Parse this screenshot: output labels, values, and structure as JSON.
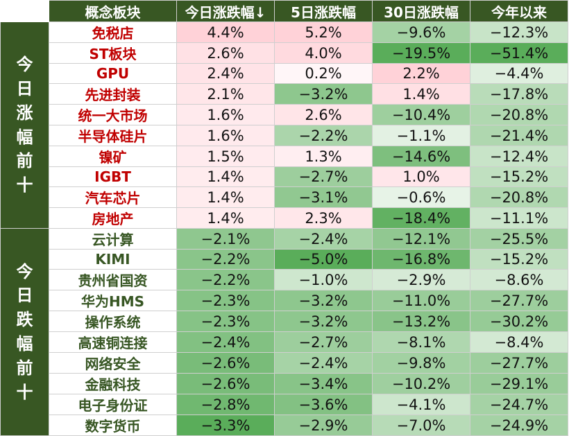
{
  "table": {
    "headers": [
      "概念板块",
      "今日涨跌幅↓",
      "5日涨跌幅",
      "30日涨跌幅",
      "今年以来"
    ],
    "groups": [
      {
        "label": "今日涨幅前十",
        "rows": [
          {
            "name": "免税店",
            "d1": "4.4%",
            "d5": "5.2%",
            "d30": "−9.6%",
            "ytd": "−12.3%"
          },
          {
            "name": "ST板块",
            "d1": "2.6%",
            "d5": "4.0%",
            "d30": "−19.5%",
            "ytd": "−51.4%"
          },
          {
            "name": "GPU",
            "d1": "2.4%",
            "d5": "0.2%",
            "d30": "2.2%",
            "ytd": "−4.4%"
          },
          {
            "name": "先进封装",
            "d1": "2.1%",
            "d5": "−3.2%",
            "d30": "1.4%",
            "ytd": "−17.8%"
          },
          {
            "name": "统一大市场",
            "d1": "1.6%",
            "d5": "2.6%",
            "d30": "−10.4%",
            "ytd": "−20.8%"
          },
          {
            "name": "半导体硅片",
            "d1": "1.6%",
            "d5": "−2.2%",
            "d30": "−1.1%",
            "ytd": "−21.4%"
          },
          {
            "name": "镍矿",
            "d1": "1.5%",
            "d5": "1.3%",
            "d30": "−14.6%",
            "ytd": "−12.4%"
          },
          {
            "name": "IGBT",
            "d1": "1.4%",
            "d5": "−2.7%",
            "d30": "1.0%",
            "ytd": "−15.2%"
          },
          {
            "name": "汽车芯片",
            "d1": "1.4%",
            "d5": "−3.1%",
            "d30": "−0.6%",
            "ytd": "−20.8%"
          },
          {
            "name": "房地产",
            "d1": "1.4%",
            "d5": "2.3%",
            "d30": "−18.4%",
            "ytd": "−11.1%"
          }
        ]
      },
      {
        "label": "今日跌幅前十",
        "rows": [
          {
            "name": "云计算",
            "d1": "−2.1%",
            "d5": "−2.4%",
            "d30": "−12.1%",
            "ytd": "−25.5%"
          },
          {
            "name": "KIMI",
            "d1": "−2.2%",
            "d5": "−5.0%",
            "d30": "−16.8%",
            "ytd": "−15.2%"
          },
          {
            "name": "贵州省国资",
            "d1": "−2.2%",
            "d5": "−1.0%",
            "d30": "−2.9%",
            "ytd": "−8.6%"
          },
          {
            "name": "华为HMS",
            "d1": "−2.3%",
            "d5": "−3.2%",
            "d30": "−11.0%",
            "ytd": "−27.7%"
          },
          {
            "name": "操作系统",
            "d1": "−2.3%",
            "d5": "−3.2%",
            "d30": "−13.2%",
            "ytd": "−30.2%"
          },
          {
            "name": "高速铜连接",
            "d1": "−2.4%",
            "d5": "−2.7%",
            "d30": "−8.1%",
            "ytd": "−8.4%"
          },
          {
            "name": "网络安全",
            "d1": "−2.6%",
            "d5": "−2.4%",
            "d30": "−9.8%",
            "ytd": "−27.7%"
          },
          {
            "name": "金融科技",
            "d1": "−2.6%",
            "d5": "−3.4%",
            "d30": "−10.2%",
            "ytd": "−29.1%"
          },
          {
            "name": "电子身份证",
            "d1": "−2.8%",
            "d5": "−3.6%",
            "d30": "−4.1%",
            "ytd": "−24.7%"
          },
          {
            "name": "数字货币",
            "d1": "−3.3%",
            "d5": "−2.9%",
            "d30": "−7.0%",
            "ytd": "−24.9%"
          }
        ]
      }
    ],
    "colors": {
      "header_bg": "#385723",
      "up_text": "#c00000",
      "down_text": "#375623",
      "positive_fill": "#ff9aa8",
      "negative_fill": "#5aad5a"
    }
  }
}
